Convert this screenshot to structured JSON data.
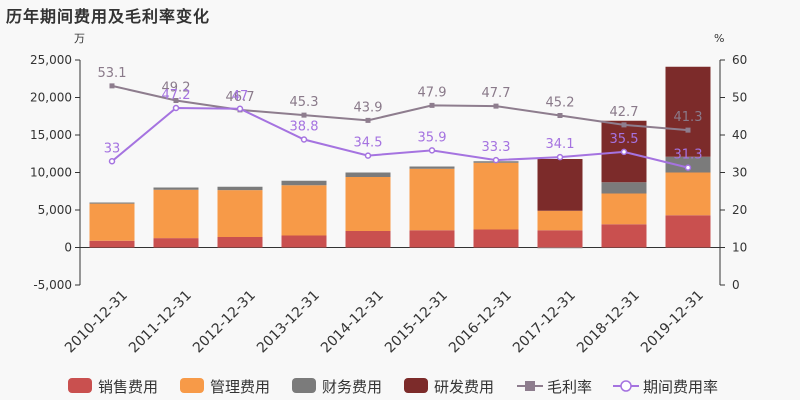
{
  "title": "历年期间费用及毛利率变化",
  "chart_data": {
    "type": "bar",
    "stacked": true,
    "categories": [
      "2010-12-31",
      "2011-12-31",
      "2012-12-31",
      "2013-12-31",
      "2014-12-31",
      "2015-12-31",
      "2016-12-31",
      "2017-12-31",
      "2018-12-31",
      "2019-12-31"
    ],
    "left_axis": {
      "unit": "万",
      "ticks": [
        "-5,000",
        "0",
        "5,000",
        "10,000",
        "15,000",
        "20,000",
        "25,000"
      ],
      "min": -5000,
      "max": 25000
    },
    "right_axis": {
      "unit": "%",
      "ticks": [
        "0",
        "10",
        "20",
        "30",
        "40",
        "50",
        "60"
      ],
      "min": 0,
      "max": 60
    },
    "series": [
      {
        "name": "销售费用",
        "kind": "bar",
        "color": "#c9504f",
        "values": [
          900,
          1250,
          1400,
          1600,
          2200,
          2300,
          2400,
          2300,
          3100,
          4300
        ]
      },
      {
        "name": "管理费用",
        "kind": "bar",
        "color": "#f79a48",
        "values": [
          4950,
          6450,
          6250,
          6700,
          7200,
          8200,
          8900,
          2600,
          4100,
          5700
        ]
      },
      {
        "name": "财务费用",
        "kind": "bar",
        "color": "#7b7b7b",
        "values": [
          150,
          300,
          450,
          600,
          600,
          300,
          200,
          -100,
          1500,
          2100
        ]
      },
      {
        "name": "研发费用",
        "kind": "bar",
        "color": "#7c2b2a",
        "values": [
          0,
          0,
          0,
          0,
          0,
          0,
          0,
          6900,
          8200,
          12000
        ]
      },
      {
        "name": "毛利率",
        "kind": "line",
        "axis": "right",
        "color": "#8e7d8e",
        "values": [
          53.1,
          49.2,
          46.7,
          45.3,
          43.9,
          47.9,
          47.7,
          45.2,
          42.7,
          41.3
        ],
        "labels": [
          "53.1",
          "49.2",
          "46.7",
          "45.3",
          "43.9",
          "47.9",
          "47.7",
          "45.2",
          "42.7",
          "41.3"
        ]
      },
      {
        "name": "期间费用率",
        "kind": "line",
        "axis": "right",
        "color": "#a573e0",
        "values": [
          33,
          47.2,
          47,
          38.8,
          34.5,
          35.9,
          33.3,
          34.1,
          35.5,
          31.3
        ],
        "labels": [
          "33",
          "47.2",
          "47",
          "38.8",
          "34.5",
          "35.9",
          "33.3",
          "34.1",
          "35.5",
          "31.3"
        ]
      }
    ],
    "legend": {
      "position": "bottom"
    },
    "grid": false
  }
}
